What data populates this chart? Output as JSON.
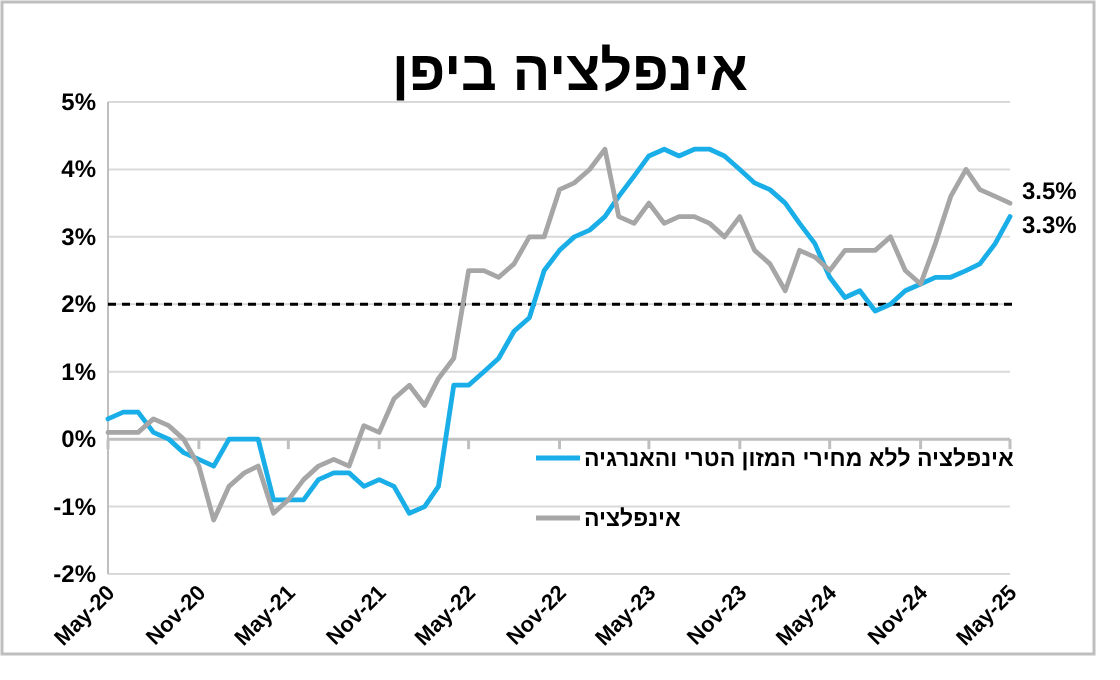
{
  "chart_data": {
    "type": "line",
    "title": "אינפלציה ביפן",
    "x": [
      "2020-05",
      "2020-06",
      "2020-07",
      "2020-08",
      "2020-09",
      "2020-10",
      "2020-11",
      "2020-12",
      "2021-01",
      "2021-02",
      "2021-03",
      "2021-04",
      "2021-05",
      "2021-06",
      "2021-07",
      "2021-08",
      "2021-09",
      "2021-10",
      "2021-11",
      "2021-12",
      "2022-01",
      "2022-02",
      "2022-03",
      "2022-04",
      "2022-05",
      "2022-06",
      "2022-07",
      "2022-08",
      "2022-09",
      "2022-10",
      "2022-11",
      "2022-12",
      "2023-01",
      "2023-02",
      "2023-03",
      "2023-04",
      "2023-05",
      "2023-06",
      "2023-07",
      "2023-08",
      "2023-09",
      "2023-10",
      "2023-11",
      "2023-12",
      "2024-01",
      "2024-02",
      "2024-03",
      "2024-04",
      "2024-05",
      "2024-06",
      "2024-07",
      "2024-08",
      "2024-09",
      "2024-10",
      "2024-11",
      "2024-12",
      "2025-01",
      "2025-02",
      "2025-03",
      "2025-04",
      "2025-05"
    ],
    "series": [
      {
        "name": "אינפלציה ללא מחירי המזון הטרי והאנרגיה",
        "color": "#1aaee8",
        "values": [
          0.3,
          0.4,
          0.4,
          0.1,
          0.0,
          -0.2,
          -0.3,
          -0.4,
          0.0,
          0.0,
          0.0,
          -0.9,
          -0.9,
          -0.9,
          -0.6,
          -0.5,
          -0.5,
          -0.7,
          -0.6,
          -0.7,
          -1.1,
          -1.0,
          -0.7,
          0.8,
          0.8,
          1.0,
          1.2,
          1.6,
          1.8,
          2.5,
          2.8,
          3.0,
          3.1,
          3.3,
          3.6,
          3.9,
          4.2,
          4.3,
          4.2,
          4.3,
          4.3,
          4.2,
          4.0,
          3.8,
          3.7,
          3.5,
          3.2,
          2.9,
          2.4,
          2.1,
          2.2,
          1.9,
          2.0,
          2.2,
          2.3,
          2.4,
          2.4,
          2.5,
          2.6,
          2.9,
          3.3
        ]
      },
      {
        "name": "אינפלציה",
        "color": "#a6a6a6",
        "values": [
          0.1,
          0.1,
          0.1,
          0.3,
          0.2,
          0.0,
          -0.4,
          -1.2,
          -0.7,
          -0.5,
          -0.4,
          -1.1,
          -0.9,
          -0.6,
          -0.4,
          -0.3,
          -0.4,
          0.2,
          0.1,
          0.6,
          0.8,
          0.5,
          0.9,
          1.2,
          2.5,
          2.5,
          2.4,
          2.6,
          3.0,
          3.0,
          3.7,
          3.8,
          4.0,
          4.3,
          3.3,
          3.2,
          3.5,
          3.2,
          3.3,
          3.3,
          3.2,
          3.0,
          3.3,
          2.8,
          2.6,
          2.2,
          2.8,
          2.7,
          2.5,
          2.8,
          2.8,
          2.8,
          3.0,
          2.5,
          2.3,
          2.9,
          3.6,
          4.0,
          3.7,
          3.6,
          3.5
        ]
      }
    ],
    "xlim": [
      "2020-05",
      "2025-05"
    ],
    "xticks": [
      {
        "value": "2020-05",
        "label": "May-20"
      },
      {
        "value": "2020-11",
        "label": "Nov-20"
      },
      {
        "value": "2021-05",
        "label": "May-21"
      },
      {
        "value": "2021-11",
        "label": "Nov-21"
      },
      {
        "value": "2022-05",
        "label": "May-22"
      },
      {
        "value": "2022-11",
        "label": "Nov-22"
      },
      {
        "value": "2023-05",
        "label": "May-23"
      },
      {
        "value": "2023-11",
        "label": "Nov-23"
      },
      {
        "value": "2024-05",
        "label": "May-24"
      },
      {
        "value": "2024-11",
        "label": "Nov-24"
      },
      {
        "value": "2025-05",
        "label": "May-25"
      }
    ],
    "ylim": [
      -2,
      5
    ],
    "yticks": [
      {
        "value": -2,
        "label": "-2%"
      },
      {
        "value": -1,
        "label": "-1%"
      },
      {
        "value": 0,
        "label": "0%"
      },
      {
        "value": 1,
        "label": "1%"
      },
      {
        "value": 2,
        "label": "2%"
      },
      {
        "value": 3,
        "label": "3%"
      },
      {
        "value": 4,
        "label": "4%"
      },
      {
        "value": 5,
        "label": "5%"
      }
    ],
    "grid": "y",
    "legend": "bottom right",
    "marker": "none",
    "line_style": "solid",
    "ref_lines": [
      {
        "axis": "y",
        "value": 2,
        "color": "#000000",
        "line_style": "dashed"
      }
    ],
    "annotations": [
      {
        "text": "3.5%",
        "x": "2025-05",
        "y": 3.5
      },
      {
        "text": "3.3%",
        "x": "2025-05",
        "y": 3.3
      }
    ]
  }
}
